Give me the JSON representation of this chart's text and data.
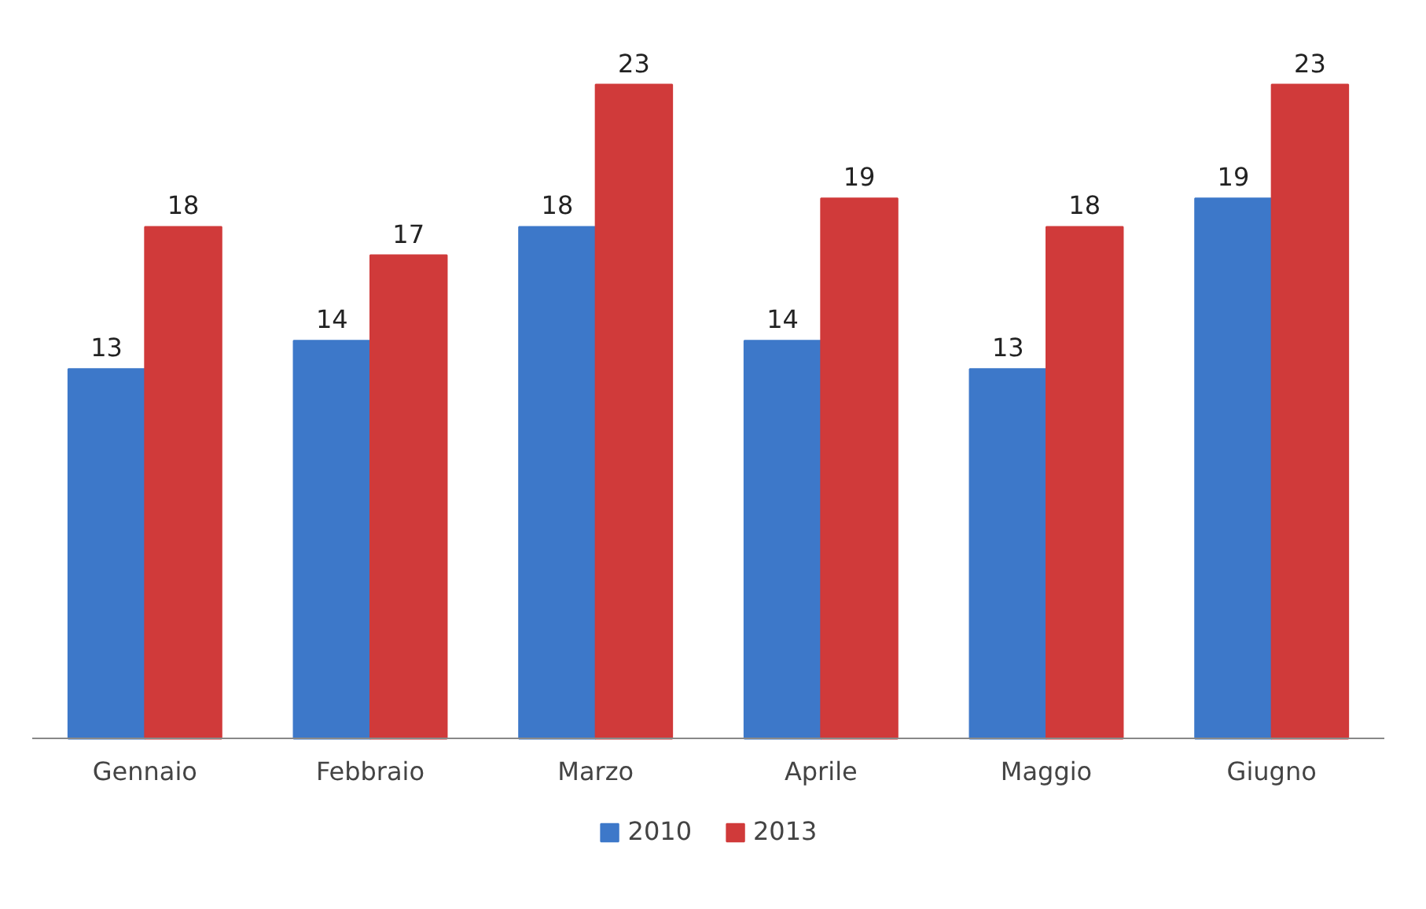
{
  "chart_data": {
    "type": "bar",
    "categories": [
      "Gennaio",
      "Febbraio",
      "Marzo",
      "Aprile",
      "Maggio",
      "Giugno"
    ],
    "series": [
      {
        "name": "2010",
        "color": "#3d78c9",
        "values": [
          13,
          14,
          18,
          14,
          13,
          19
        ]
      },
      {
        "name": "2013",
        "color": "#d03a3a",
        "values": [
          18,
          17,
          23,
          19,
          18,
          23
        ]
      }
    ],
    "data_labels": true,
    "grid": false,
    "legend": "bottom",
    "tick_labels": "x"
  }
}
